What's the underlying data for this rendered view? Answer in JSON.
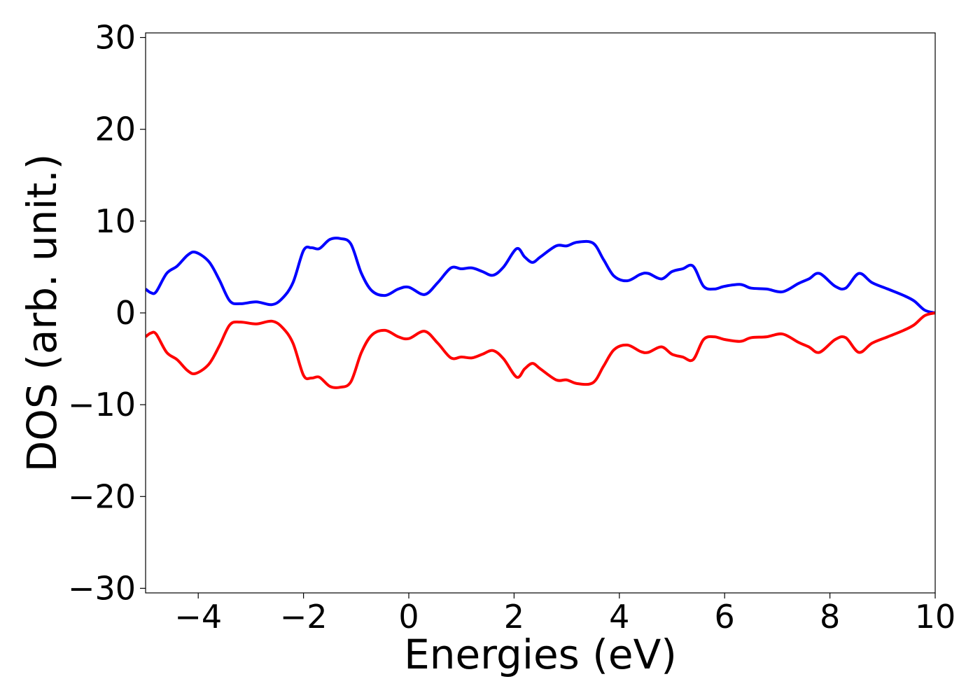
{
  "chart_data": {
    "type": "line",
    "title": "",
    "xlabel": "Energies (eV)",
    "ylabel": "DOS (arb. unit.)",
    "xlim": [
      -5,
      10
    ],
    "ylim": [
      -30.5,
      30.5
    ],
    "xticks": [
      -4,
      -2,
      0,
      2,
      4,
      6,
      8,
      10
    ],
    "xtick_labels": [
      "−4",
      "−2",
      "0",
      "2",
      "4",
      "6",
      "8",
      "10"
    ],
    "yticks": [
      -30,
      -20,
      -10,
      0,
      10,
      20,
      30
    ],
    "ytick_labels": [
      "−30",
      "−20",
      "−10",
      "0",
      "10",
      "20",
      "30"
    ],
    "grid": false,
    "legend": "none",
    "series": [
      {
        "color": "#0000ff",
        "points": [
          [
            -5.0,
            2.6
          ],
          [
            -4.9,
            2.2
          ],
          [
            -4.8,
            2.3
          ],
          [
            -4.6,
            4.3
          ],
          [
            -4.4,
            5.1
          ],
          [
            -4.2,
            6.3
          ],
          [
            -4.05,
            6.6
          ],
          [
            -3.8,
            5.6
          ],
          [
            -3.6,
            3.6
          ],
          [
            -3.4,
            1.3
          ],
          [
            -3.2,
            1.0
          ],
          [
            -2.9,
            1.2
          ],
          [
            -2.6,
            0.9
          ],
          [
            -2.4,
            1.6
          ],
          [
            -2.2,
            3.3
          ],
          [
            -2.0,
            6.8
          ],
          [
            -1.85,
            7.1
          ],
          [
            -1.7,
            7.0
          ],
          [
            -1.5,
            8.0
          ],
          [
            -1.3,
            8.1
          ],
          [
            -1.1,
            7.5
          ],
          [
            -0.9,
            4.3
          ],
          [
            -0.7,
            2.4
          ],
          [
            -0.45,
            1.9
          ],
          [
            -0.2,
            2.6
          ],
          [
            0.0,
            2.8
          ],
          [
            0.3,
            2.0
          ],
          [
            0.55,
            3.3
          ],
          [
            0.8,
            4.9
          ],
          [
            1.0,
            4.8
          ],
          [
            1.2,
            4.9
          ],
          [
            1.4,
            4.5
          ],
          [
            1.6,
            4.1
          ],
          [
            1.8,
            5.0
          ],
          [
            2.05,
            7.0
          ],
          [
            2.2,
            6.1
          ],
          [
            2.35,
            5.5
          ],
          [
            2.5,
            6.1
          ],
          [
            2.8,
            7.3
          ],
          [
            3.0,
            7.3
          ],
          [
            3.2,
            7.7
          ],
          [
            3.5,
            7.6
          ],
          [
            3.7,
            5.8
          ],
          [
            3.9,
            4.0
          ],
          [
            4.15,
            3.5
          ],
          [
            4.4,
            4.2
          ],
          [
            4.55,
            4.3
          ],
          [
            4.8,
            3.7
          ],
          [
            5.0,
            4.5
          ],
          [
            5.2,
            4.8
          ],
          [
            5.4,
            5.1
          ],
          [
            5.6,
            2.9
          ],
          [
            5.8,
            2.6
          ],
          [
            6.0,
            2.9
          ],
          [
            6.3,
            3.1
          ],
          [
            6.5,
            2.7
          ],
          [
            6.8,
            2.6
          ],
          [
            7.1,
            2.3
          ],
          [
            7.4,
            3.2
          ],
          [
            7.6,
            3.7
          ],
          [
            7.8,
            4.3
          ],
          [
            8.1,
            2.9
          ],
          [
            8.3,
            2.7
          ],
          [
            8.55,
            4.3
          ],
          [
            8.8,
            3.3
          ],
          [
            9.1,
            2.6
          ],
          [
            9.4,
            1.9
          ],
          [
            9.6,
            1.3
          ],
          [
            9.8,
            0.3
          ],
          [
            10.0,
            0.0
          ]
        ]
      },
      {
        "color": "#ff0000",
        "points": [
          [
            -5.0,
            -2.6
          ],
          [
            -4.9,
            -2.2
          ],
          [
            -4.8,
            -2.3
          ],
          [
            -4.6,
            -4.3
          ],
          [
            -4.4,
            -5.1
          ],
          [
            -4.2,
            -6.3
          ],
          [
            -4.05,
            -6.6
          ],
          [
            -3.8,
            -5.6
          ],
          [
            -3.6,
            -3.6
          ],
          [
            -3.4,
            -1.3
          ],
          [
            -3.2,
            -1.0
          ],
          [
            -2.9,
            -1.2
          ],
          [
            -2.6,
            -0.9
          ],
          [
            -2.4,
            -1.6
          ],
          [
            -2.2,
            -3.3
          ],
          [
            -2.0,
            -6.8
          ],
          [
            -1.85,
            -7.1
          ],
          [
            -1.7,
            -7.0
          ],
          [
            -1.5,
            -8.0
          ],
          [
            -1.3,
            -8.1
          ],
          [
            -1.1,
            -7.5
          ],
          [
            -0.9,
            -4.3
          ],
          [
            -0.7,
            -2.4
          ],
          [
            -0.45,
            -1.9
          ],
          [
            -0.2,
            -2.6
          ],
          [
            0.0,
            -2.8
          ],
          [
            0.3,
            -2.0
          ],
          [
            0.55,
            -3.3
          ],
          [
            0.8,
            -4.9
          ],
          [
            1.0,
            -4.8
          ],
          [
            1.2,
            -4.9
          ],
          [
            1.4,
            -4.5
          ],
          [
            1.6,
            -4.1
          ],
          [
            1.8,
            -5.0
          ],
          [
            2.05,
            -7.0
          ],
          [
            2.2,
            -6.1
          ],
          [
            2.35,
            -5.5
          ],
          [
            2.5,
            -6.1
          ],
          [
            2.8,
            -7.3
          ],
          [
            3.0,
            -7.3
          ],
          [
            3.2,
            -7.7
          ],
          [
            3.5,
            -7.6
          ],
          [
            3.7,
            -5.8
          ],
          [
            3.9,
            -4.0
          ],
          [
            4.15,
            -3.5
          ],
          [
            4.4,
            -4.2
          ],
          [
            4.55,
            -4.3
          ],
          [
            4.8,
            -3.7
          ],
          [
            5.0,
            -4.5
          ],
          [
            5.2,
            -4.8
          ],
          [
            5.4,
            -5.1
          ],
          [
            5.6,
            -2.9
          ],
          [
            5.8,
            -2.6
          ],
          [
            6.0,
            -2.9
          ],
          [
            6.3,
            -3.1
          ],
          [
            6.5,
            -2.7
          ],
          [
            6.8,
            -2.6
          ],
          [
            7.1,
            -2.3
          ],
          [
            7.4,
            -3.2
          ],
          [
            7.6,
            -3.7
          ],
          [
            7.8,
            -4.3
          ],
          [
            8.1,
            -2.9
          ],
          [
            8.3,
            -2.7
          ],
          [
            8.55,
            -4.3
          ],
          [
            8.8,
            -3.3
          ],
          [
            9.1,
            -2.6
          ],
          [
            9.4,
            -1.9
          ],
          [
            9.6,
            -1.3
          ],
          [
            9.8,
            -0.3
          ],
          [
            10.0,
            0.0
          ]
        ]
      }
    ]
  }
}
